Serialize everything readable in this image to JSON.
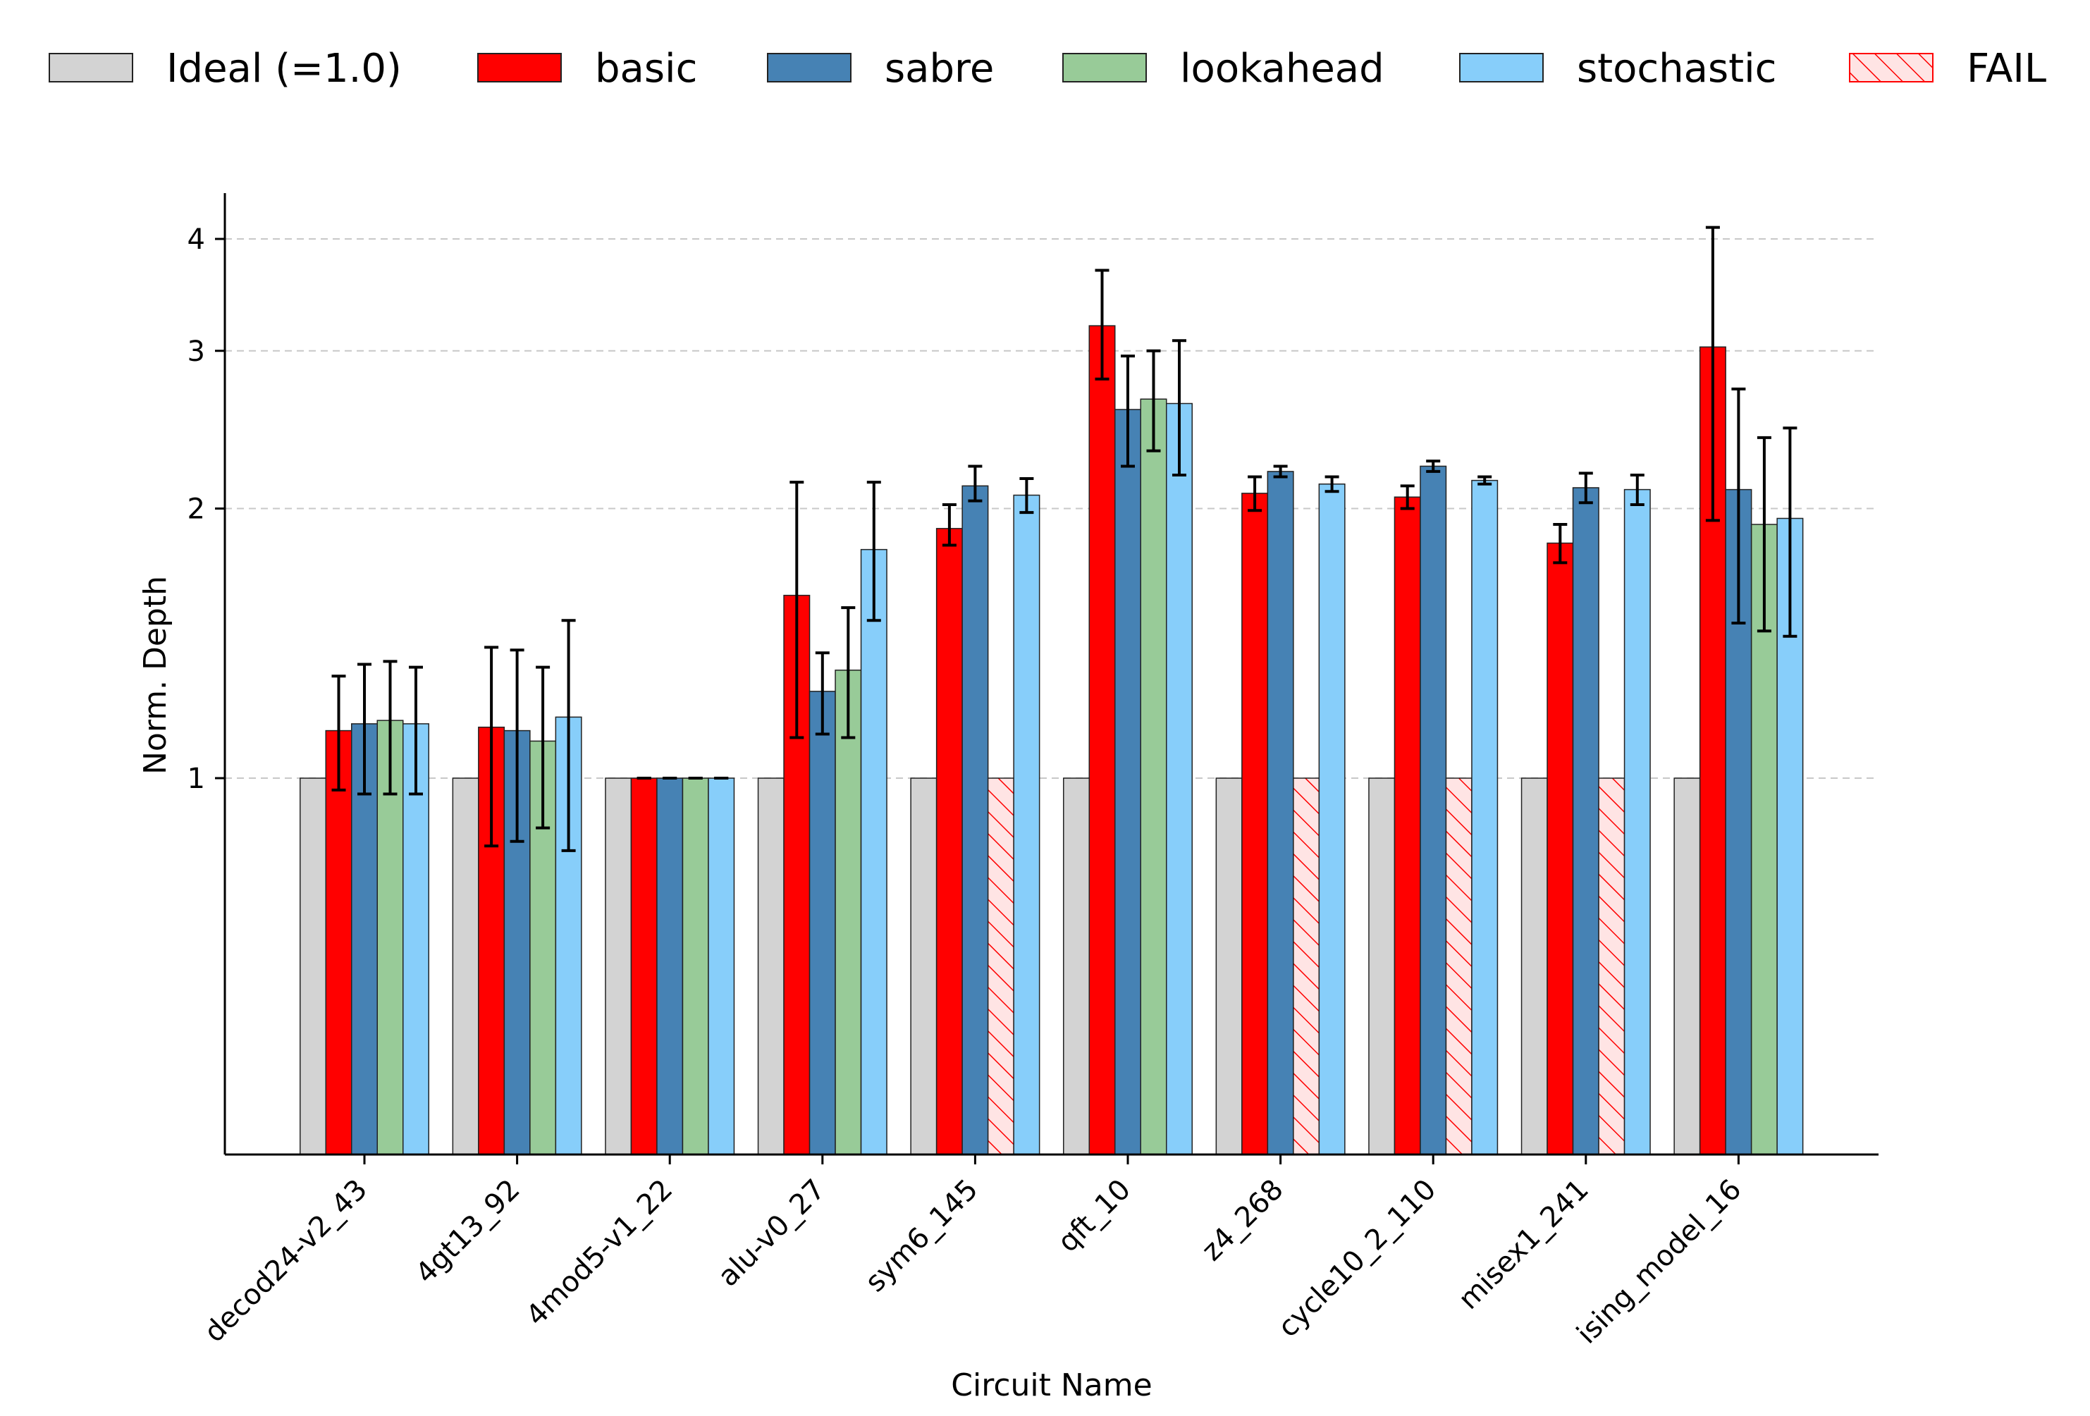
{
  "chart_data": {
    "type": "bar",
    "title": "",
    "xlabel": "Circuit Name",
    "ylabel": "Norm. Depth",
    "yscale": "log",
    "ylim": [
      0.38,
      4.5
    ],
    "yticks": [
      1,
      2,
      3,
      4
    ],
    "ytick_labels": [
      "1",
      "2",
      "3",
      "4"
    ],
    "grid": "y-dashed",
    "legend_placement": "top-center",
    "categories": [
      "decod24-v2_43",
      "4gt13_92",
      "4mod5-v1_22",
      "alu-v0_27",
      "sym6_145",
      "qft_10",
      "z4_268",
      "cycle10_2_110",
      "misex1_241",
      "ising_model_16"
    ],
    "legend": [
      {
        "key": "ideal",
        "label": "Ideal (=1.0)",
        "color": "#d3d3d3"
      },
      {
        "key": "basic",
        "label": "basic",
        "color": "#ff0000"
      },
      {
        "key": "sabre",
        "label": "sabre",
        "color": "#4682b4"
      },
      {
        "key": "lookahead",
        "label": "lookahead",
        "color": "#98cb98"
      },
      {
        "key": "stochastic",
        "label": "stochastic",
        "color": "#87cefa"
      },
      {
        "key": "fail",
        "label": "FAIL",
        "color": "#ffe4e4",
        "hatch": "#ff0000"
      }
    ],
    "series": [
      {
        "name": "Ideal (=1.0)",
        "values": [
          1,
          1,
          1,
          1,
          1,
          1,
          1,
          1,
          1,
          1
        ],
        "errors": [
          null,
          null,
          null,
          null,
          null,
          null,
          null,
          null,
          null,
          null
        ]
      },
      {
        "name": "basic",
        "values": [
          1.13,
          1.14,
          1.0,
          1.6,
          1.9,
          3.2,
          2.08,
          2.06,
          1.83,
          3.03
        ],
        "errors": [
          [
            0.97,
            1.3
          ],
          [
            0.84,
            1.4
          ],
          [
            1.0,
            1.0
          ],
          [
            1.11,
            2.14
          ],
          [
            1.82,
            2.02
          ],
          [
            2.79,
            3.69
          ],
          [
            1.99,
            2.17
          ],
          [
            2.0,
            2.12
          ],
          [
            1.74,
            1.92
          ],
          [
            1.94,
            4.12
          ]
        ]
      },
      {
        "name": "sabre",
        "values": [
          1.15,
          1.13,
          1.0,
          1.25,
          2.12,
          2.58,
          2.2,
          2.23,
          2.11,
          2.1
        ],
        "errors": [
          [
            0.96,
            1.34
          ],
          [
            0.85,
            1.39
          ],
          [
            1.0,
            1.0
          ],
          [
            1.12,
            1.38
          ],
          [
            2.04,
            2.23
          ],
          [
            2.23,
            2.96
          ],
          [
            2.17,
            2.23
          ],
          [
            2.2,
            2.26
          ],
          [
            2.03,
            2.19
          ],
          [
            1.49,
            2.72
          ]
        ]
      },
      {
        "name": "lookahead",
        "values": [
          1.16,
          1.1,
          1.0,
          1.32,
          "FAIL",
          2.65,
          "FAIL",
          "FAIL",
          "FAIL",
          1.92
        ],
        "errors": [
          [
            0.96,
            1.35
          ],
          [
            0.88,
            1.33
          ],
          [
            1.0,
            1.0
          ],
          [
            1.11,
            1.55
          ],
          null,
          [
            2.32,
            3.0
          ],
          null,
          null,
          null,
          [
            1.46,
            2.4
          ]
        ]
      },
      {
        "name": "stochastic",
        "values": [
          1.15,
          1.17,
          1.0,
          1.8,
          2.07,
          2.62,
          2.13,
          2.15,
          2.1,
          1.95
        ],
        "errors": [
          [
            0.96,
            1.33
          ],
          [
            0.83,
            1.5
          ],
          [
            1.0,
            1.0
          ],
          [
            1.5,
            2.14
          ],
          [
            1.98,
            2.16
          ],
          [
            2.18,
            3.08
          ],
          [
            2.09,
            2.17
          ],
          [
            2.13,
            2.17
          ],
          [
            2.02,
            2.18
          ],
          [
            1.44,
            2.46
          ]
        ]
      }
    ],
    "fail_value": 1.0
  }
}
